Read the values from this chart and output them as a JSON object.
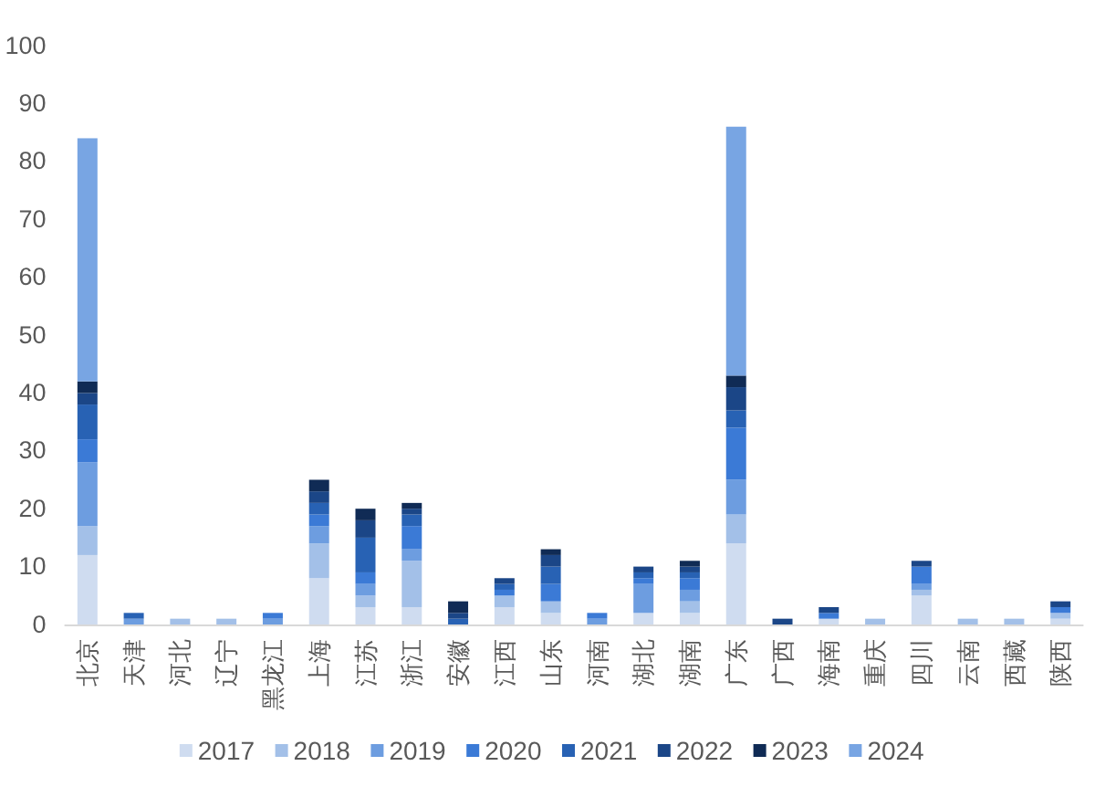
{
  "chart_data": {
    "type": "bar",
    "stacked": true,
    "legend": "bottom",
    "categories": [
      "北京",
      "天津",
      "河北",
      "辽宁",
      "黑龙江",
      "上海",
      "江苏",
      "浙江",
      "安徽",
      "江西",
      "山东",
      "河南",
      "湖北",
      "湖南",
      "广东",
      "广西",
      "海南",
      "重庆",
      "四川",
      "云南",
      "西藏",
      "陕西"
    ],
    "ylim": [
      0,
      100
    ],
    "yticks": [
      0,
      10,
      20,
      30,
      40,
      50,
      60,
      70,
      80,
      90,
      100
    ],
    "series": [
      {
        "name": "2017",
        "color": "#cfdcf0",
        "values": [
          12,
          0,
          0,
          0,
          0,
          8,
          3,
          3,
          0,
          3,
          2,
          0,
          2,
          2,
          14,
          0,
          1,
          0,
          5,
          0,
          0,
          1
        ]
      },
      {
        "name": "2018",
        "color": "#a3c0e8",
        "values": [
          5,
          0,
          1,
          1,
          0,
          6,
          2,
          8,
          0,
          2,
          2,
          0,
          0,
          2,
          5,
          0,
          0,
          1,
          1,
          1,
          1,
          1
        ]
      },
      {
        "name": "2019",
        "color": "#6d9de0",
        "values": [
          11,
          1,
          0,
          0,
          1,
          3,
          2,
          2,
          0,
          0,
          0,
          1,
          5,
          2,
          6,
          0,
          0,
          0,
          1,
          0,
          0,
          0
        ]
      },
      {
        "name": "2020",
        "color": "#3b7ad6",
        "values": [
          4,
          0,
          0,
          0,
          1,
          2,
          2,
          4,
          0,
          1,
          3,
          1,
          1,
          2,
          9,
          0,
          1,
          0,
          3,
          0,
          0,
          1
        ]
      },
      {
        "name": "2021",
        "color": "#2862b4",
        "values": [
          6,
          1,
          0,
          0,
          0,
          2,
          6,
          2,
          1,
          1,
          3,
          0,
          1,
          1,
          3,
          0,
          0,
          0,
          0,
          0,
          0,
          0
        ]
      },
      {
        "name": "2022",
        "color": "#1b4687",
        "values": [
          2,
          0,
          0,
          0,
          0,
          2,
          3,
          1,
          1,
          1,
          2,
          0,
          1,
          1,
          4,
          1,
          1,
          0,
          1,
          0,
          0,
          1
        ]
      },
      {
        "name": "2023",
        "color": "#102b55",
        "values": [
          2,
          0,
          0,
          0,
          0,
          2,
          2,
          1,
          2,
          0,
          1,
          0,
          0,
          1,
          2,
          0,
          0,
          0,
          0,
          0,
          0,
          0
        ]
      },
      {
        "name": "2024",
        "color": "#78a5e3",
        "values": [
          42,
          0,
          0,
          0,
          0,
          0,
          0,
          0,
          0,
          0,
          0,
          0,
          0,
          0,
          43,
          0,
          0,
          0,
          0,
          0,
          0,
          0
        ]
      }
    ]
  }
}
